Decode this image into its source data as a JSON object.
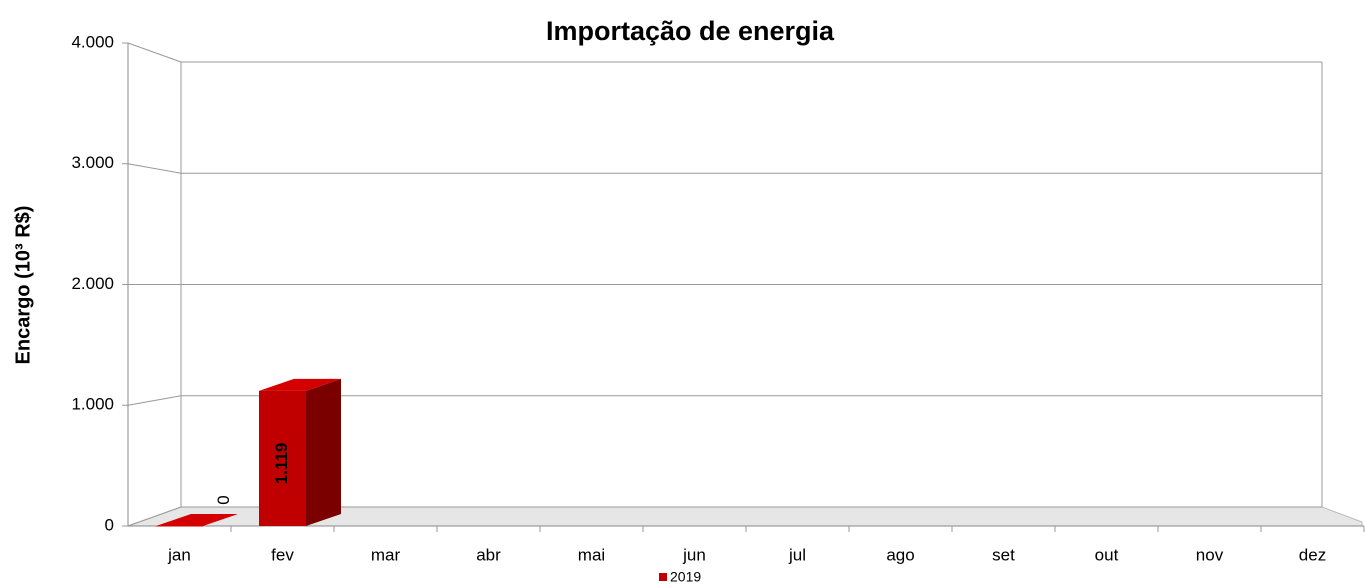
{
  "chart_data": {
    "type": "bar",
    "title": "Importação de energia",
    "ylabel": "Encargo (10³ R$)",
    "categories": [
      "jan",
      "fev",
      "mar",
      "abr",
      "mai",
      "jun",
      "jul",
      "ago",
      "set",
      "out",
      "nov",
      "dez"
    ],
    "series": [
      {
        "name": "2019",
        "color": "#c00000",
        "values": [
          0,
          1119,
          null,
          null,
          null,
          null,
          null,
          null,
          null,
          null,
          null,
          null
        ],
        "value_labels": [
          "0",
          "1.119",
          null,
          null,
          null,
          null,
          null,
          null,
          null,
          null,
          null,
          null
        ]
      }
    ],
    "ylim": [
      0,
      4000
    ],
    "yticks": [
      {
        "value": 0,
        "label": "0"
      },
      {
        "value": 1000,
        "label": "1.000"
      },
      {
        "value": 2000,
        "label": "2.000"
      },
      {
        "value": 3000,
        "label": "3.000"
      },
      {
        "value": 4000,
        "label": "4.000"
      }
    ],
    "grid": true,
    "legend": "bottom"
  }
}
